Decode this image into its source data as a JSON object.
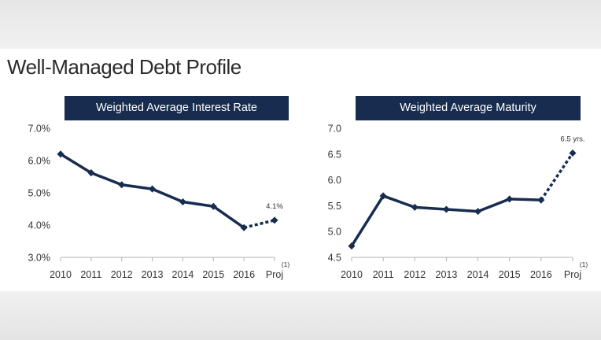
{
  "title": "Well-Managed Debt Profile",
  "chart_data": [
    {
      "type": "line",
      "title": "Weighted Average Interest Rate",
      "categories": [
        "2010",
        "2011",
        "2012",
        "2013",
        "2014",
        "2015",
        "2016",
        "Proj"
      ],
      "footnote": "(1)",
      "y_ticks": [
        "3.0%",
        "4.0%",
        "5.0%",
        "6.0%",
        "7.0%"
      ],
      "ylim": [
        3.0,
        7.0
      ],
      "grid": false,
      "series": [
        {
          "values": [
            6.2,
            5.62,
            5.25,
            5.12,
            4.72,
            4.58,
            3.92,
            4.15
          ],
          "projection_from_index": 6,
          "color": "#172c4f"
        }
      ],
      "data_labels": [
        {
          "index": 7,
          "text": "4.1%"
        }
      ]
    },
    {
      "type": "line",
      "title": "Weighted Average Maturity",
      "categories": [
        "2010",
        "2011",
        "2012",
        "2013",
        "2014",
        "2015",
        "2016",
        "Proj"
      ],
      "footnote": "(1)",
      "y_ticks": [
        "4.5",
        "5.0",
        "5.5",
        "6.0",
        "6.5",
        "7.0"
      ],
      "ylim": [
        4.5,
        7.0
      ],
      "grid": false,
      "series": [
        {
          "values": [
            4.72,
            5.69,
            5.47,
            5.43,
            5.39,
            5.63,
            5.61,
            6.52
          ],
          "projection_from_index": 6,
          "color": "#172c4f"
        }
      ],
      "data_labels": [
        {
          "index": 7,
          "text": "6.5 yrs."
        }
      ]
    }
  ]
}
